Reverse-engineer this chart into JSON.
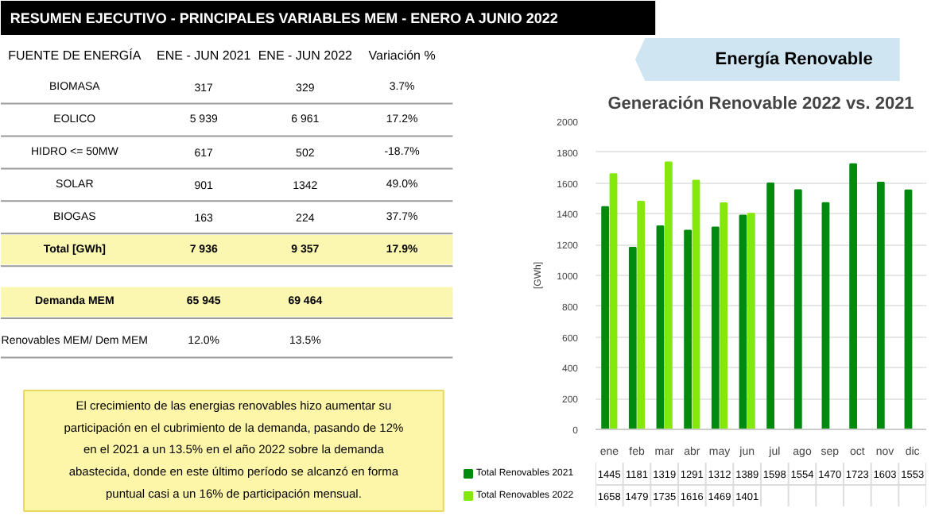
{
  "chart_data": [
    {
      "type": "other",
      "title": "RESUMEN EJECUTIVO - PRINCIPALES VARIABLES MEM - ENERO A JUNIO 2022",
      "categories": [
        "FUENTE DE ENERGÍA",
        "ENE - JUN 2021",
        "ENE - JUN 2022",
        "Variación %"
      ],
      "y_categories": [
        "BIOMASA",
        "EOLICO",
        "HIDRO <= 50MW",
        "SOLAR",
        "BIOGAS",
        "Total [GWh]",
        "Demanda MEM",
        "Renovables MEM/ Dem MEM"
      ],
      "cell_labels": [
        [
          "317",
          "329",
          "3.7%"
        ],
        [
          "5 939",
          "6 961",
          "17.2%"
        ],
        [
          "617",
          "502",
          "-18.7%"
        ],
        [
          "901",
          "1342",
          "49.0%"
        ],
        [
          "163",
          "224",
          "37.7%"
        ],
        [
          "7 936",
          "9 357",
          "17.9%"
        ],
        [
          "65 945",
          "69 464",
          null
        ],
        [
          "12.0%",
          "13.5%",
          null
        ]
      ],
      "annotations": [
        "El crecimiento de las energias renovables hizo aumentar su participación en el cubrimiento de la demanda, pasando de 12% en el 2021 a un 13.5% en el año 2022 sobre la demanda abastecida, donde en este último período se alcanzó en forma puntual casi a un 16% de participación mensual."
      ]
    },
    {
      "type": "bar",
      "subtitle": "Energía Renovable",
      "title": "Generación Renovable 2022 vs. 2021",
      "ylabel": "[GWh]",
      "categories": [
        "ene",
        "feb",
        "mar",
        "abr",
        "may",
        "jun",
        "jul",
        "ago",
        "sep",
        "oct",
        "nov",
        "dic"
      ],
      "series": [
        {
          "name": "Total Renovables 2021",
          "color": "#008a0e",
          "values": [
            1445,
            1181,
            1319,
            1291,
            1312,
            1389,
            1598,
            1554,
            1470,
            1723,
            1603,
            1553
          ]
        },
        {
          "name": "Total Renovables 2022",
          "color": "#84e80a",
          "values": [
            1658,
            1479,
            1735,
            1616,
            1469,
            1401,
            null,
            null,
            null,
            null,
            null,
            null
          ]
        }
      ],
      "ylim": [
        0,
        2000
      ],
      "yticks": [
        0,
        200,
        400,
        600,
        800,
        1000,
        1200,
        1400,
        1600,
        1800,
        2000
      ],
      "grid": "y",
      "data_labels": true,
      "legend": "bottom"
    }
  ]
}
